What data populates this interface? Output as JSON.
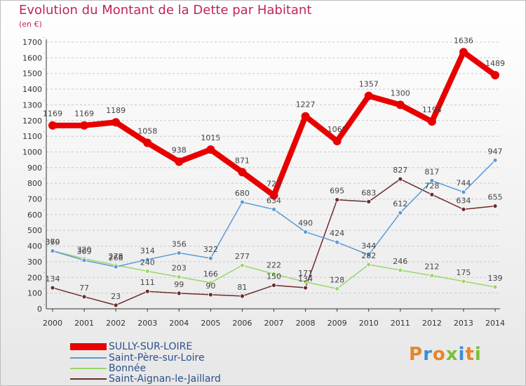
{
  "header": {
    "title": "Evolution du Montant de la Dette par Habitant",
    "subtitle": "(en €)"
  },
  "logo": {
    "letters": [
      "P",
      "r",
      "o",
      "x",
      "i",
      "t",
      "i"
    ],
    "colors": [
      "#e8852a",
      "#3b8fd6",
      "#e8852a",
      "#7bbf3a",
      "#3b8fd6",
      "#e8852a",
      "#7bbf3a"
    ]
  },
  "chart_data": {
    "type": "line",
    "title": "Evolution du Montant de la Dette par Habitant",
    "subtitle": "(en €)",
    "x": [
      "2000",
      "2001",
      "2002",
      "2003",
      "2004",
      "2005",
      "2006",
      "2007",
      "2008",
      "2009",
      "2010",
      "2011",
      "2012",
      "2013",
      "2014"
    ],
    "ylim": [
      0,
      1700
    ],
    "yticks": [
      0,
      100,
      200,
      300,
      400,
      500,
      600,
      700,
      800,
      900,
      1000,
      1100,
      1200,
      1300,
      1400,
      1500,
      1600,
      1700
    ],
    "grid": "horizontal-dashed",
    "legend_position": "bottom-left",
    "series": [
      {
        "name": "SULLY-SUR-LOIRE",
        "color": "#e80000",
        "values": [
          1169,
          1169,
          1189,
          1058,
          938,
          1015,
          871,
          723,
          1227,
          1069,
          1357,
          1300,
          1194,
          1636,
          1489
        ]
      },
      {
        "name": "Saint-Père-sur-Loire",
        "color": "#5b9bd5",
        "values": [
          369,
          309,
          268,
          314,
          356,
          322,
          680,
          634,
          490,
          424,
          344,
          612,
          817,
          744,
          947
        ]
      },
      {
        "name": "Bonnée",
        "color": "#9cd66a",
        "values": [
          370,
          320,
          278,
          240,
          203,
          166,
          277,
          222,
          171,
          128,
          282,
          246,
          212,
          175,
          139
        ]
      },
      {
        "name": "Saint-Aignan-le-Jaillard",
        "color": "#6b2b2b",
        "values": [
          134,
          77,
          23,
          111,
          99,
          90,
          81,
          150,
          134,
          695,
          683,
          827,
          728,
          634,
          655
        ]
      }
    ]
  }
}
